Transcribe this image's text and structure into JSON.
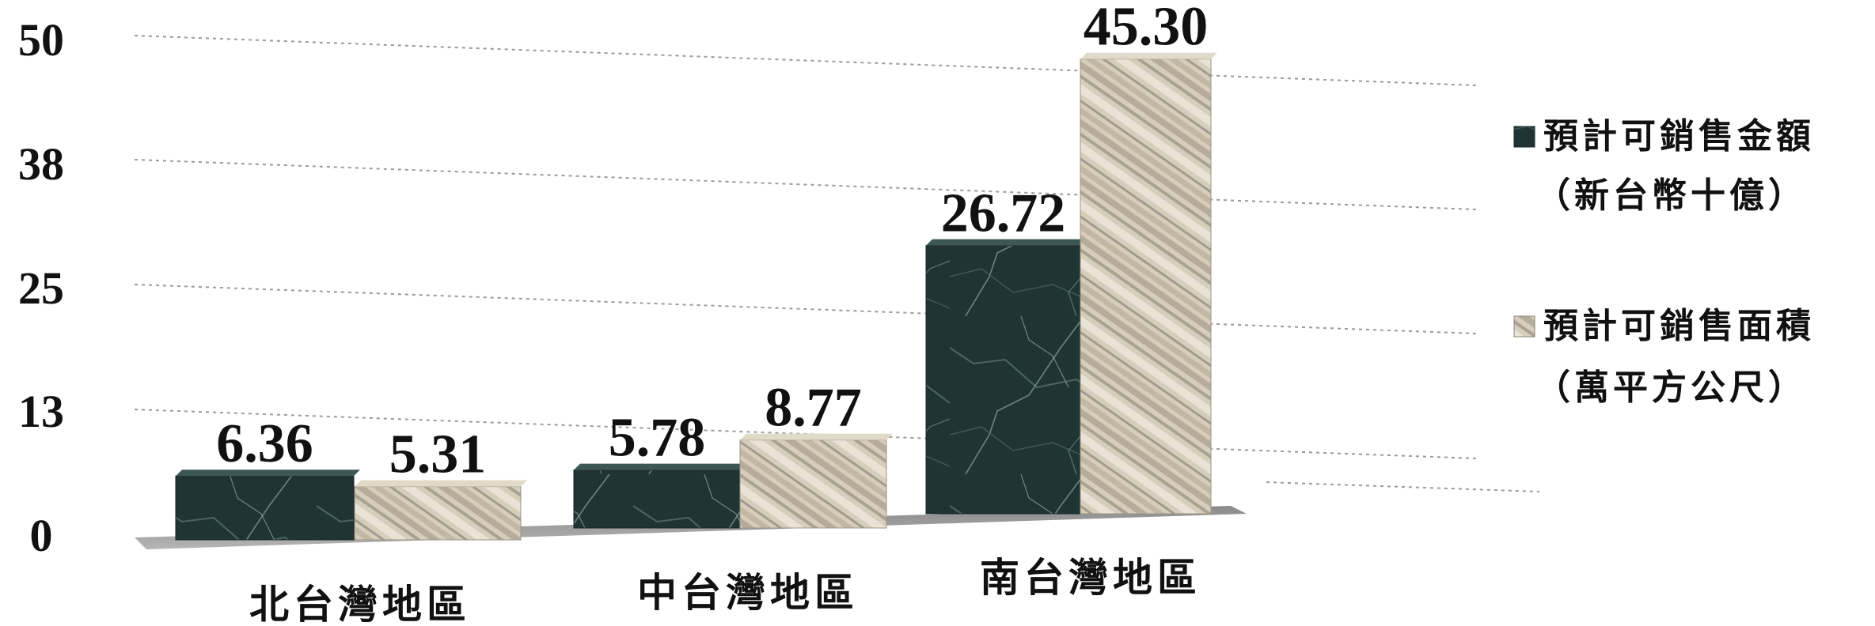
{
  "chart_data": {
    "type": "bar",
    "categories": [
      "北台灣地區",
      "中台灣地區",
      "南台灣地區"
    ],
    "series": [
      {
        "name_lines": [
          "預計可銷售金額",
          "（新台幣十億）"
        ],
        "values": [
          6.36,
          5.78,
          26.72
        ],
        "value_labels": [
          "6.36",
          "5.78",
          "26.72"
        ],
        "color": "#2a3f3f",
        "texture": "dark-green-marble"
      },
      {
        "name_lines": [
          "預計可銷售面積",
          "（萬平方公尺）"
        ],
        "values": [
          5.31,
          8.77,
          45.3
        ],
        "value_labels": [
          "5.31",
          "8.77",
          "45.30"
        ],
        "color": "#c9c0ae",
        "texture": "beige-striped-marble"
      }
    ],
    "y_ticks": [
      "0",
      "13",
      "25",
      "38",
      "50"
    ],
    "ylim": [
      0,
      50
    ],
    "grid": true,
    "legend_position": "right",
    "style": "3d-perspective"
  }
}
